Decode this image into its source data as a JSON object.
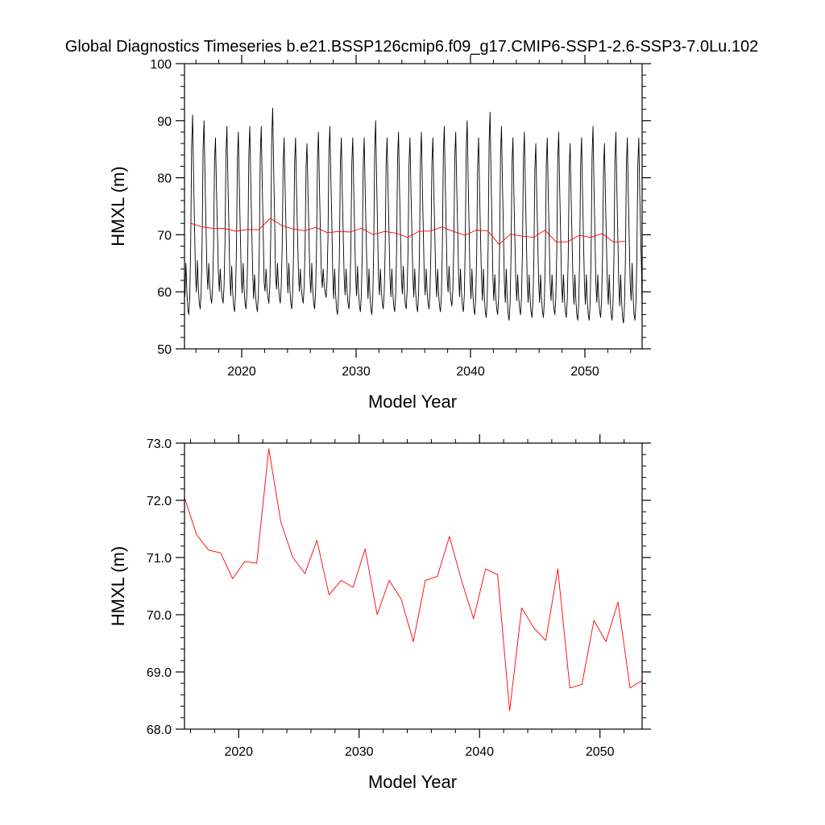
{
  "title": "Global Diagnostics Timeseries b.e21.BSSP126cmip6.f09_g17.CMIP6-SSP1-2.6-SSP3-7.0Lu.102",
  "colors": {
    "monthly_line": "#000000",
    "annual_line": "#ff0000",
    "axes": "#000000"
  },
  "chart_data": [
    {
      "type": "line",
      "xlabel": "Model Year",
      "ylabel": "HMXL (m)",
      "xlim": [
        2015,
        2055
      ],
      "ylim": [
        50,
        100
      ],
      "x_ticks": [
        2020,
        2030,
        2040,
        2050
      ],
      "y_ticks": [
        50,
        60,
        70,
        80,
        90,
        100
      ],
      "y_tick_labels": [
        "50",
        "60",
        "70",
        "80",
        "90",
        "100"
      ],
      "grid": false,
      "series": [
        {
          "kind": "monthly",
          "start_year": 2015,
          "months_per_year": 12,
          "annual_max": [
            91,
            90,
            87,
            89,
            88,
            89,
            89,
            92.2,
            87,
            87,
            86,
            88,
            89,
            87,
            87,
            87,
            90,
            87,
            88,
            87,
            88,
            87,
            89,
            88,
            90,
            87,
            91.5,
            89,
            87,
            88,
            86,
            87,
            88,
            86,
            87,
            89,
            86,
            88,
            87,
            87
          ],
          "annual_min": [
            56,
            57,
            58,
            58,
            56.5,
            57,
            56.5,
            58,
            58,
            57,
            58,
            57,
            59,
            56,
            57,
            56.5,
            56,
            57,
            56.5,
            57,
            56.5,
            57,
            56.5,
            57.5,
            56.5,
            56,
            55.5,
            56,
            55,
            56,
            55.5,
            55.5,
            56,
            55.5,
            55,
            55,
            55.5,
            55,
            54.5,
            55
          ],
          "annual_secondary": [
            65,
            65.5,
            65,
            64,
            64.5,
            65,
            63,
            64,
            65,
            65,
            64,
            65,
            64,
            64,
            64,
            64.5,
            64,
            64,
            64,
            64.5,
            64,
            64,
            64,
            64.5,
            64,
            64,
            64,
            63,
            64,
            63,
            63,
            63,
            63,
            63,
            63,
            63,
            63,
            63,
            63,
            65
          ],
          "end_value": 55
        },
        {
          "kind": "annual",
          "x": [
            2015.5,
            2016.5,
            2017.5,
            2018.5,
            2019.5,
            2020.5,
            2021.5,
            2022.5,
            2023.5,
            2024.5,
            2025.5,
            2026.5,
            2027.5,
            2028.5,
            2029.5,
            2030.5,
            2031.5,
            2032.5,
            2033.5,
            2034.5,
            2035.5,
            2036.5,
            2037.5,
            2038.5,
            2039.5,
            2040.5,
            2041.5,
            2042.5,
            2043.5,
            2044.5,
            2045.5,
            2046.5,
            2047.5,
            2048.5,
            2049.5,
            2050.5,
            2051.5,
            2052.5,
            2053.5
          ],
          "values": [
            72.05,
            71.4,
            71.13,
            71.08,
            70.63,
            70.93,
            70.9,
            72.9,
            71.62,
            71.0,
            70.72,
            71.3,
            70.35,
            70.6,
            70.48,
            71.15,
            70.0,
            70.6,
            70.27,
            69.53,
            70.6,
            70.67,
            71.37,
            70.6,
            69.93,
            70.8,
            70.7,
            68.32,
            70.12,
            69.77,
            69.55,
            70.8,
            68.72,
            68.78,
            69.9,
            69.53,
            70.22,
            68.72,
            68.85
          ]
        }
      ]
    },
    {
      "type": "line",
      "xlabel": "Model Year",
      "ylabel": "HMXL (m)",
      "xlim": [
        2015.5,
        2053.5
      ],
      "ylim": [
        68,
        73
      ],
      "x_ticks": [
        2020,
        2030,
        2040,
        2050
      ],
      "y_ticks": [
        68,
        69,
        70,
        71,
        72,
        73
      ],
      "y_tick_labels": [
        "68.0",
        "69.0",
        "70.0",
        "71.0",
        "72.0",
        "73.0"
      ],
      "grid": false,
      "series": [
        {
          "kind": "annual",
          "x": [
            2015.5,
            2016.5,
            2017.5,
            2018.5,
            2019.5,
            2020.5,
            2021.5,
            2022.5,
            2023.5,
            2024.5,
            2025.5,
            2026.5,
            2027.5,
            2028.5,
            2029.5,
            2030.5,
            2031.5,
            2032.5,
            2033.5,
            2034.5,
            2035.5,
            2036.5,
            2037.5,
            2038.5,
            2039.5,
            2040.5,
            2041.5,
            2042.5,
            2043.5,
            2044.5,
            2045.5,
            2046.5,
            2047.5,
            2048.5,
            2049.5,
            2050.5,
            2051.5,
            2052.5,
            2053.5
          ],
          "values": [
            72.05,
            71.4,
            71.13,
            71.08,
            70.63,
            70.93,
            70.9,
            72.9,
            71.62,
            71.0,
            70.72,
            71.3,
            70.35,
            70.6,
            70.48,
            71.15,
            70.0,
            70.6,
            70.27,
            69.53,
            70.6,
            70.67,
            71.37,
            70.6,
            69.93,
            70.8,
            70.7,
            68.32,
            70.12,
            69.77,
            69.55,
            70.8,
            68.72,
            68.78,
            69.9,
            69.53,
            70.22,
            68.72,
            68.85
          ]
        }
      ]
    }
  ]
}
